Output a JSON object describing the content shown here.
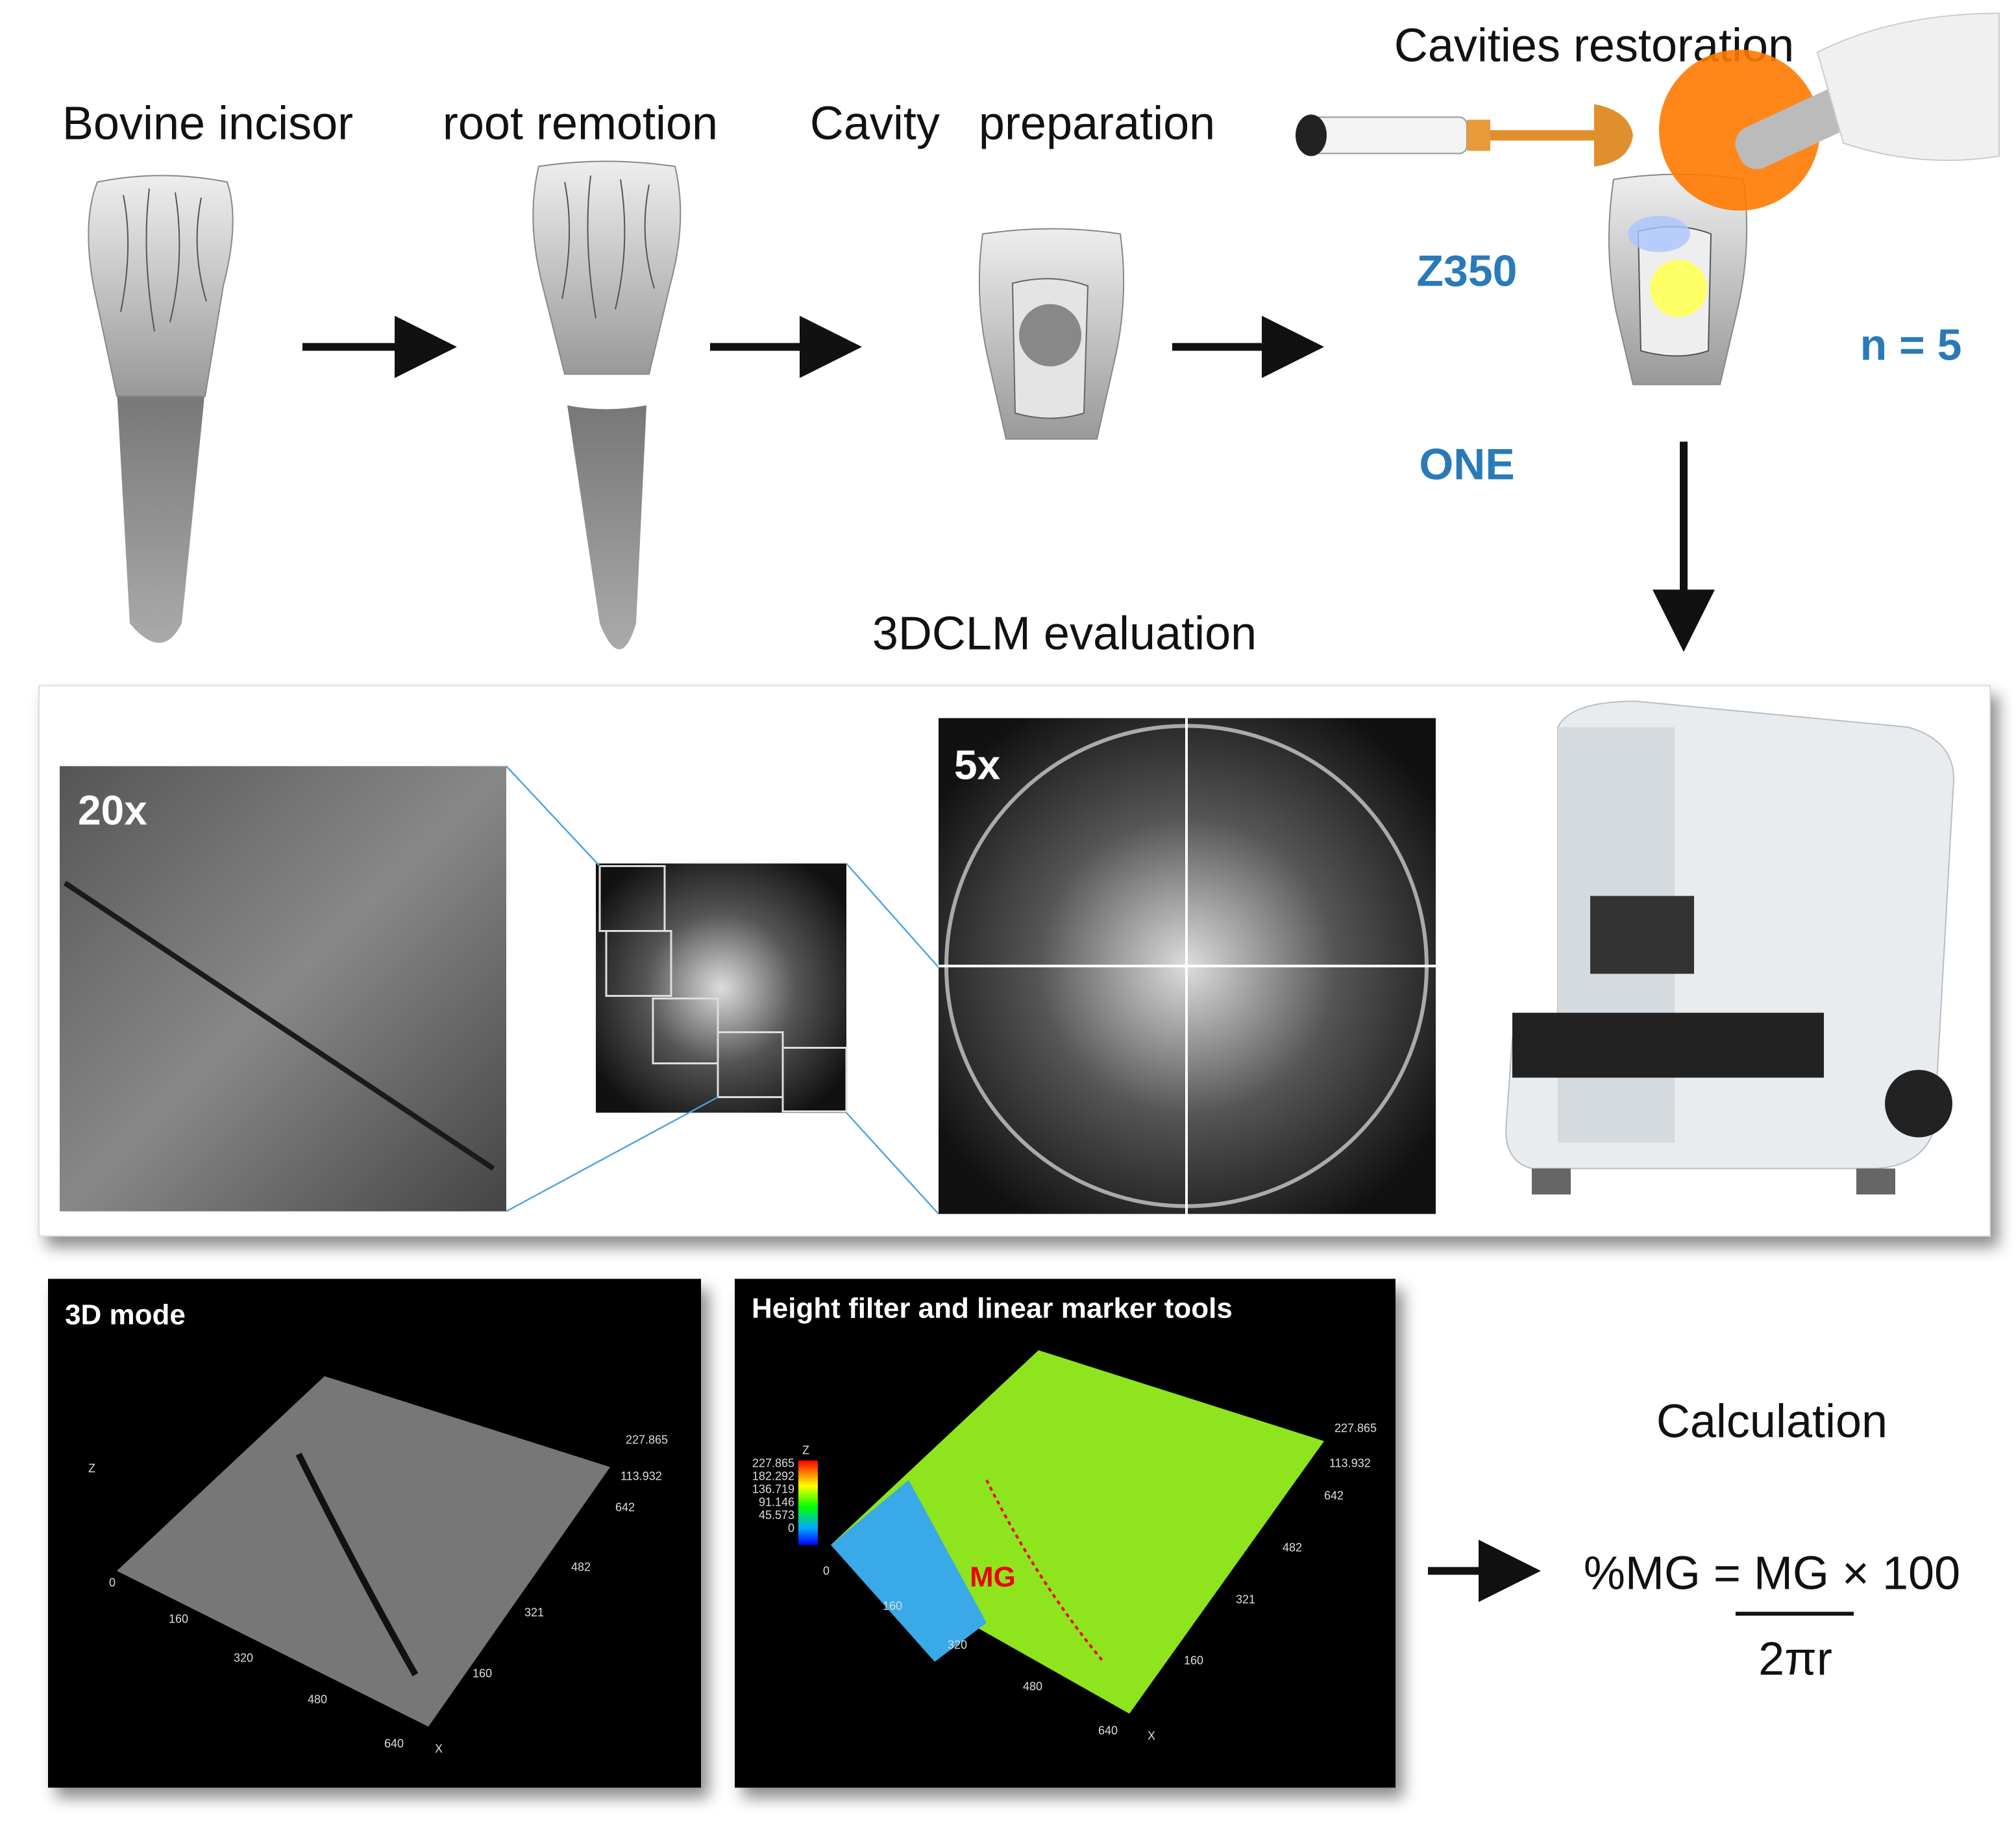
{
  "restoration_title": "Cavities restoration",
  "steps": [
    {
      "label": "Bovine incisor"
    },
    {
      "label": "root remotion"
    },
    {
      "label": "Cavity   preparation"
    }
  ],
  "materials": [
    "Z350",
    "ONE"
  ],
  "sample_size": "n = 5",
  "evaluation": {
    "title": "3DCLM evaluation",
    "magnifications": [
      "20x",
      "5x"
    ]
  },
  "panels": [
    {
      "title": "3D mode",
      "z_label": "Z",
      "x_label": "X",
      "z_ticks": [
        "227.865",
        "113.932"
      ],
      "y_ticks": [
        "642",
        "482",
        "321",
        "160"
      ],
      "x_ticks": [
        "0",
        "160",
        "320",
        "480",
        "640"
      ]
    },
    {
      "title": "Height filter and linear marker tools",
      "z_label": "Z",
      "x_label": "X",
      "z_ticks": [
        "227.865",
        "113.932"
      ],
      "y_ticks": [
        "642",
        "482",
        "321",
        "160"
      ],
      "x_ticks": [
        "0",
        "160",
        "320",
        "480",
        "640"
      ],
      "color_scale": [
        "227.865",
        "182.292",
        "136.719",
        "91.146",
        "45.573",
        "0"
      ],
      "annotation": "MG"
    }
  ],
  "calculation": {
    "title": "Calculation",
    "numerator": "%MG = MG × 100",
    "denominator": "2πr"
  }
}
